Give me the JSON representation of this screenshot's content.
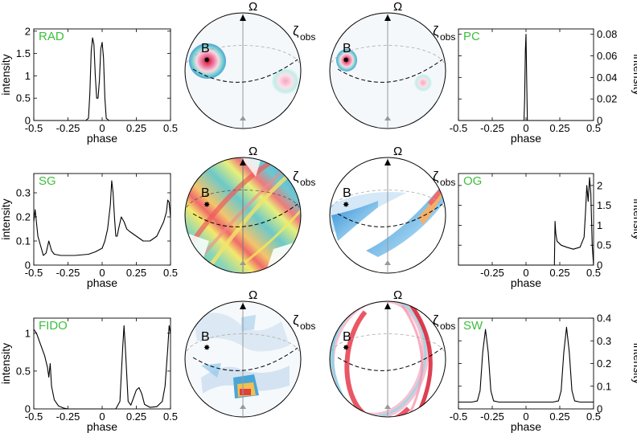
{
  "symbols": {
    "omega": "Ω",
    "zeta": "ζ",
    "zeta_sub": "obs",
    "b_label": "B"
  },
  "colors": {
    "label_green": "#3cbf3c",
    "line": "#000000"
  },
  "chart_data": [
    {
      "id": "RAD",
      "type": "line",
      "label": "RAD",
      "side": "left",
      "xlabel": "phase",
      "ylabel": "intensity",
      "xlim": [
        -0.5,
        0.5
      ],
      "ylim": [
        0,
        2.05
      ],
      "xticks": [
        -0.5,
        -0.25,
        0,
        0.25,
        0.5
      ],
      "xticklabels": [
        "-0.5",
        "-0.25",
        "0",
        "0.25",
        "0.5"
      ],
      "yticks": [
        0,
        0.5,
        1,
        1.5,
        2
      ],
      "yticklabels": [
        "0",
        "0.5",
        "1",
        "1.5",
        "2"
      ],
      "x": [
        -0.5,
        -0.2,
        -0.12,
        -0.1,
        -0.09,
        -0.08,
        -0.07,
        -0.06,
        -0.05,
        -0.04,
        -0.03,
        -0.02,
        -0.01,
        0.0,
        0.01,
        0.02,
        0.03,
        0.05,
        0.2,
        0.5
      ],
      "y": [
        0,
        0,
        0,
        0.05,
        0.6,
        1.55,
        1.85,
        1.7,
        1.0,
        0.5,
        0.5,
        0.9,
        1.6,
        1.75,
        1.4,
        0.5,
        0.05,
        0,
        0,
        0
      ]
    },
    {
      "id": "PC",
      "type": "line",
      "label": "PC",
      "side": "right",
      "xlabel": "phase",
      "ylabel": "intensity",
      "xlim": [
        -0.5,
        0.5
      ],
      "ylim": [
        0,
        0.085
      ],
      "xticks": [
        -0.5,
        -0.25,
        0,
        0.25,
        0.5
      ],
      "xticklabels": [
        "-0.5",
        "-0.25",
        "0",
        "0.25",
        "0.5"
      ],
      "yticks": [
        0,
        0.02,
        0.04,
        0.06,
        0.08
      ],
      "yticklabels": [
        "0",
        "0.02",
        "0.04",
        "0.06",
        "0.08"
      ],
      "x": [
        -0.5,
        -0.03,
        -0.015,
        -0.01,
        -0.005,
        0.0,
        0.005,
        0.01,
        0.03,
        0.5
      ],
      "y": [
        0,
        0,
        0,
        0.02,
        0.065,
        0.08,
        0.04,
        0,
        0,
        0
      ]
    },
    {
      "id": "SG",
      "type": "line",
      "label": "SG",
      "side": "left",
      "xlabel": "phase",
      "ylabel": "intensity",
      "xlim": [
        -0.5,
        0.5
      ],
      "ylim": [
        0,
        0.38
      ],
      "xticks": [
        -0.5,
        -0.25,
        0,
        0.25,
        0.5
      ],
      "xticklabels": [
        "-0.5",
        "-0.25",
        "0",
        "0.25",
        "0.5"
      ],
      "yticks": [
        0,
        0.1,
        0.2,
        0.3
      ],
      "yticklabels": [
        "0",
        "0.1",
        "0.2",
        "0.3"
      ],
      "x": [
        -0.5,
        -0.49,
        -0.47,
        -0.45,
        -0.43,
        -0.41,
        -0.39,
        -0.37,
        -0.35,
        -0.3,
        -0.2,
        -0.1,
        -0.05,
        0.0,
        0.02,
        0.04,
        0.06,
        0.07,
        0.08,
        0.09,
        0.1,
        0.11,
        0.12,
        0.14,
        0.16,
        0.18,
        0.2,
        0.25,
        0.3,
        0.35,
        0.4,
        0.45,
        0.47,
        0.48,
        0.49,
        0.5
      ],
      "y": [
        0.18,
        0.23,
        0.12,
        0.08,
        0.04,
        0.05,
        0.1,
        0.06,
        0.045,
        0.04,
        0.04,
        0.045,
        0.055,
        0.07,
        0.1,
        0.15,
        0.25,
        0.35,
        0.3,
        0.2,
        0.12,
        0.12,
        0.15,
        0.2,
        0.18,
        0.15,
        0.14,
        0.12,
        0.1,
        0.1,
        0.12,
        0.18,
        0.22,
        0.27,
        0.26,
        0.2
      ]
    },
    {
      "id": "OG",
      "type": "line",
      "label": "OG",
      "side": "right",
      "xlabel": "phase",
      "ylabel": "intensity",
      "xlim": [
        -0.5,
        0.5
      ],
      "ylim": [
        0,
        2.3
      ],
      "xticks": [
        -0.25,
        0,
        0.25,
        0.5
      ],
      "xticklabels": [
        "-0.25",
        "0",
        "0.25",
        "0.5"
      ],
      "yticks": [
        0,
        0.5,
        1,
        1.5,
        2
      ],
      "yticklabels": [
        "0",
        "0.5",
        "1",
        "1.5",
        "2"
      ],
      "x": [
        -0.5,
        0.2,
        0.21,
        0.215,
        0.22,
        0.23,
        0.26,
        0.3,
        0.35,
        0.4,
        0.43,
        0.44,
        0.45,
        0.46,
        0.47,
        0.48,
        0.49,
        0.5
      ],
      "y": [
        0,
        0,
        0,
        1.1,
        0.8,
        0.6,
        0.5,
        0.45,
        0.4,
        0.45,
        0.7,
        1.3,
        2.0,
        1.6,
        2.2,
        1.8,
        0.5,
        0
      ]
    },
    {
      "id": "FIDO",
      "type": "line",
      "label": "FIDO",
      "side": "left",
      "xlabel": "phase",
      "ylabel": "intensity",
      "xlim": [
        -0.5,
        0.5
      ],
      "ylim": [
        0,
        1.2
      ],
      "xticks": [
        -0.5,
        -0.25,
        0,
        0.25,
        0.5
      ],
      "xticklabels": [
        "-0.5",
        "-0.25",
        "0",
        "0.25",
        "0.5"
      ],
      "yticks": [
        0,
        0.5,
        1
      ],
      "yticklabels": [
        "0",
        "0.5",
        "1"
      ],
      "x": [
        -0.5,
        -0.48,
        -0.46,
        -0.44,
        -0.42,
        -0.4,
        -0.39,
        -0.38,
        -0.37,
        -0.35,
        -0.32,
        -0.28,
        -0.25,
        0.1,
        0.13,
        0.15,
        0.16,
        0.17,
        0.19,
        0.21,
        0.23,
        0.25,
        0.27,
        0.29,
        0.31,
        0.35,
        0.4,
        0.44,
        0.46,
        0.48,
        0.49,
        0.5
      ],
      "y": [
        1.05,
        1.0,
        0.9,
        0.8,
        0.7,
        0.55,
        0.42,
        0.6,
        0.3,
        0.12,
        0.04,
        0.01,
        0,
        0,
        0.1,
        0.8,
        1.1,
        0.8,
        0.1,
        0.05,
        0.15,
        0.25,
        0.28,
        0.2,
        0.06,
        0.02,
        0.03,
        0.1,
        0.3,
        0.8,
        1.1,
        1.0
      ]
    },
    {
      "id": "SW",
      "type": "line",
      "label": "SW",
      "side": "right",
      "xlabel": "phase",
      "ylabel": "intensity",
      "xlim": [
        -0.5,
        0.5
      ],
      "ylim": [
        0,
        0.4
      ],
      "xticks": [
        -0.5,
        -0.25,
        0,
        0.25,
        0.5
      ],
      "xticklabels": [
        "-0.5",
        "-0.25",
        "0",
        "0.25",
        "0.5"
      ],
      "yticks": [
        0,
        0.1,
        0.2,
        0.3,
        0.4
      ],
      "yticklabels": [
        "0",
        "0.1",
        "0.2",
        "0.3",
        "0.4"
      ],
      "x": [
        -0.5,
        -0.4,
        -0.36,
        -0.34,
        -0.32,
        -0.3,
        -0.28,
        -0.26,
        -0.24,
        -0.2,
        0.2,
        0.24,
        0.26,
        0.28,
        0.3,
        0.32,
        0.34,
        0.36,
        0.4,
        0.5
      ],
      "y": [
        0.03,
        0.03,
        0.035,
        0.08,
        0.25,
        0.35,
        0.25,
        0.08,
        0.035,
        0.03,
        0.03,
        0.035,
        0.08,
        0.25,
        0.36,
        0.25,
        0.08,
        0.035,
        0.03,
        0.03
      ]
    }
  ]
}
